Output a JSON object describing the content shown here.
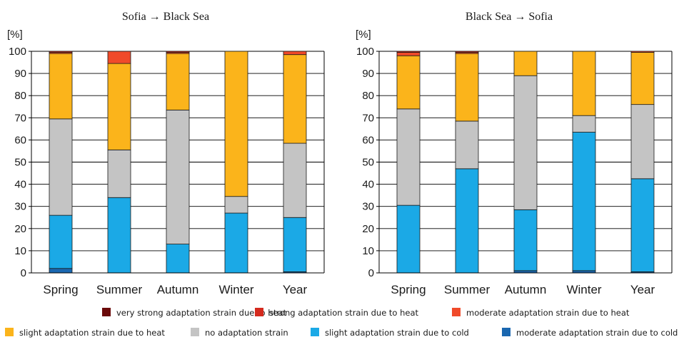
{
  "legend": [
    {
      "key": "very_strong_heat",
      "label": "very strong adaptation strain due to heat",
      "color": "#6b0a0a"
    },
    {
      "key": "strong_heat",
      "label": "strong adaptation strain due to heat",
      "color": "#d42a1e"
    },
    {
      "key": "moderate_heat",
      "label": "moderate adaptation strain due to heat",
      "color": "#f04a2a"
    },
    {
      "key": "slight_heat",
      "label": "slight adaptation strain due to heat",
      "color": "#fbb41b"
    },
    {
      "key": "no_strain",
      "label": "no adaptation strain",
      "color": "#c4c4c4"
    },
    {
      "key": "slight_cold",
      "label": "slight adaptation strain due to cold",
      "color": "#1ba9e6"
    },
    {
      "key": "moderate_cold",
      "label": "moderate adaptation strain due to cold",
      "color": "#1a67b0"
    }
  ],
  "chart_data": [
    {
      "type": "bar",
      "stacked": true,
      "title": "Sofia → Black Sea",
      "ylabel": "[%]",
      "xlabel": "",
      "ylim": [
        0,
        100
      ],
      "yticks": [
        0,
        10,
        20,
        30,
        40,
        50,
        60,
        70,
        80,
        90,
        100
      ],
      "grid": true,
      "categories": [
        "Spring",
        "Summer",
        "Autumn",
        "Winter",
        "Year"
      ],
      "series": [
        {
          "key": "moderate_cold",
          "name": "moderate adaptation strain due to cold",
          "values": [
            2,
            0,
            0,
            0,
            0.5
          ]
        },
        {
          "key": "slight_cold",
          "name": "slight adaptation strain due to cold",
          "values": [
            24,
            34,
            13,
            27,
            24.5
          ]
        },
        {
          "key": "no_strain",
          "name": "no adaptation strain",
          "values": [
            43.5,
            21.5,
            60.5,
            7.5,
            33.5
          ]
        },
        {
          "key": "slight_heat",
          "name": "slight adaptation strain due to heat",
          "values": [
            29.5,
            39,
            25.5,
            65.5,
            40
          ]
        },
        {
          "key": "moderate_heat",
          "name": "moderate adaptation strain due to heat",
          "values": [
            0.5,
            5.5,
            0.5,
            0,
            1.5
          ]
        },
        {
          "key": "strong_heat",
          "name": "strong adaptation strain due to heat",
          "values": [
            0.5,
            0,
            0.5,
            0,
            0
          ]
        },
        {
          "key": "very_strong_heat",
          "name": "very strong adaptation strain due to heat",
          "values": [
            0,
            0,
            0,
            0,
            0
          ]
        }
      ]
    },
    {
      "type": "bar",
      "stacked": true,
      "title": "Black Sea → Sofia",
      "ylabel": "[%]",
      "xlabel": "",
      "ylim": [
        0,
        100
      ],
      "yticks": [
        0,
        10,
        20,
        30,
        40,
        50,
        60,
        70,
        80,
        90,
        100
      ],
      "grid": true,
      "categories": [
        "Spring",
        "Summer",
        "Autumn",
        "Winter",
        "Year"
      ],
      "series": [
        {
          "key": "moderate_cold",
          "name": "moderate adaptation strain due to cold",
          "values": [
            0,
            0,
            1,
            1,
            0.5
          ]
        },
        {
          "key": "slight_cold",
          "name": "slight adaptation strain due to cold",
          "values": [
            30.5,
            47,
            27.5,
            62.5,
            42
          ]
        },
        {
          "key": "no_strain",
          "name": "no adaptation strain",
          "values": [
            43.5,
            21.5,
            60.5,
            7.5,
            33.5
          ]
        },
        {
          "key": "slight_heat",
          "name": "slight adaptation strain due to heat",
          "values": [
            24,
            30.5,
            11,
            29,
            23.5
          ]
        },
        {
          "key": "moderate_heat",
          "name": "moderate adaptation strain due to heat",
          "values": [
            1.5,
            0.5,
            0,
            0,
            0.5
          ]
        },
        {
          "key": "strong_heat",
          "name": "strong adaptation strain due to heat",
          "values": [
            0.5,
            0.5,
            0,
            0,
            0
          ]
        },
        {
          "key": "very_strong_heat",
          "name": "very strong adaptation strain due to heat",
          "values": [
            0,
            0,
            0,
            0,
            0
          ]
        }
      ]
    }
  ]
}
